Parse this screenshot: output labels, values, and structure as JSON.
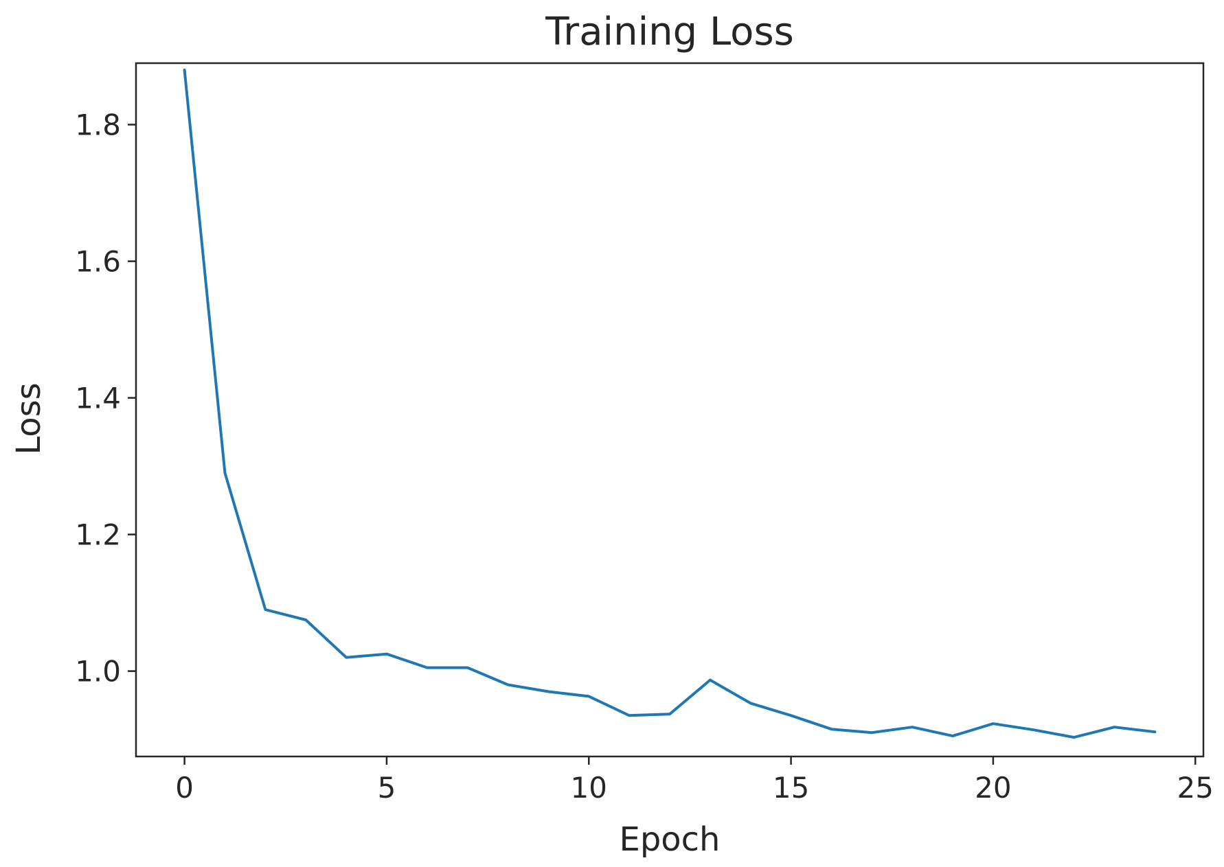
{
  "chart_data": {
    "type": "line",
    "title": "Training Loss",
    "xlabel": "Epoch",
    "ylabel": "Loss",
    "xlim": [
      -1.2,
      25.2
    ],
    "ylim": [
      0.875,
      1.89
    ],
    "xticks": [
      0,
      5,
      10,
      15,
      20,
      25
    ],
    "yticks": [
      1.0,
      1.2,
      1.4,
      1.6,
      1.8
    ],
    "xtick_labels": [
      "0",
      "5",
      "10",
      "15",
      "20",
      "25"
    ],
    "ytick_labels": [
      "1.0",
      "1.2",
      "1.4",
      "1.6",
      "1.8"
    ],
    "grid": false,
    "legend": "none",
    "series": [
      {
        "color": "#1f77b4",
        "x": [
          0,
          1,
          2,
          3,
          4,
          5,
          6,
          7,
          8,
          9,
          10,
          11,
          12,
          13,
          14,
          15,
          16,
          17,
          18,
          19,
          20,
          21,
          22,
          23,
          24
        ],
        "y": [
          1.88,
          1.29,
          1.09,
          1.075,
          1.02,
          1.025,
          1.005,
          1.005,
          0.98,
          0.97,
          0.963,
          0.935,
          0.937,
          0.987,
          0.953,
          0.935,
          0.915,
          0.91,
          0.918,
          0.905,
          0.923,
          0.914,
          0.903,
          0.918,
          0.911
        ]
      }
    ]
  }
}
